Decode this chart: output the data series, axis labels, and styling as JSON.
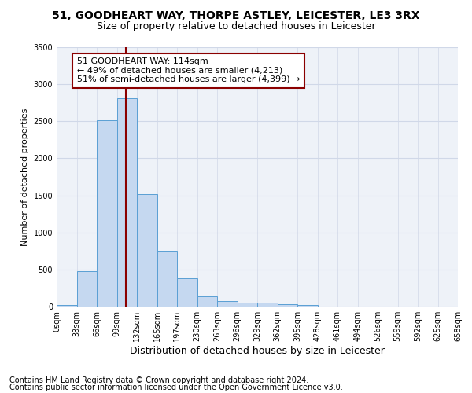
{
  "title": "51, GOODHEART WAY, THORPE ASTLEY, LEICESTER, LE3 3RX",
  "subtitle": "Size of property relative to detached houses in Leicester",
  "xlabel": "Distribution of detached houses by size in Leicester",
  "ylabel": "Number of detached properties",
  "bin_labels": [
    "0sqm",
    "33sqm",
    "66sqm",
    "99sqm",
    "132sqm",
    "165sqm",
    "197sqm",
    "230sqm",
    "263sqm",
    "296sqm",
    "329sqm",
    "362sqm",
    "395sqm",
    "428sqm",
    "461sqm",
    "494sqm",
    "526sqm",
    "559sqm",
    "592sqm",
    "625sqm",
    "658sqm"
  ],
  "bar_values": [
    25,
    480,
    2510,
    2810,
    1520,
    750,
    385,
    140,
    70,
    55,
    55,
    30,
    20,
    0,
    0,
    0,
    0,
    0,
    0,
    0
  ],
  "bar_color": "#c5d8f0",
  "bar_edge_color": "#5a9fd4",
  "vline_pos": 3.45,
  "vline_color": "#8b0000",
  "annotation_line1": "51 GOODHEART WAY: 114sqm",
  "annotation_line2": "← 49% of detached houses are smaller (4,213)",
  "annotation_line3": "51% of semi-detached houses are larger (4,399) →",
  "annotation_box_color": "#ffffff",
  "annotation_box_edge": "#8b0000",
  "ylim": [
    0,
    3500
  ],
  "yticks": [
    0,
    500,
    1000,
    1500,
    2000,
    2500,
    3000,
    3500
  ],
  "grid_color": "#d0d8e8",
  "bg_color": "#eef2f8",
  "footnote1": "Contains HM Land Registry data © Crown copyright and database right 2024.",
  "footnote2": "Contains public sector information licensed under the Open Government Licence v3.0.",
  "title_fontsize": 10,
  "subtitle_fontsize": 9,
  "xlabel_fontsize": 9,
  "ylabel_fontsize": 8,
  "tick_fontsize": 7,
  "annotation_fontsize": 8,
  "footnote_fontsize": 7
}
